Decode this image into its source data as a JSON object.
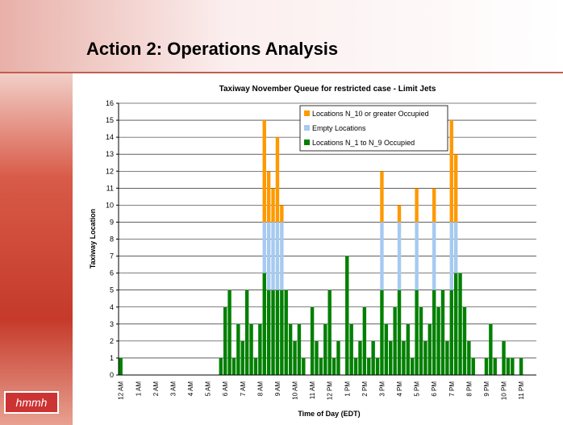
{
  "slide_title": "Action 2: Operations Analysis",
  "logo": "hmmh",
  "chart_data": {
    "type": "bar",
    "stacked": true,
    "title": "Taxiway November Queue for restricted case - Limit Jets",
    "x_label": "Time of Day (EDT)",
    "y_label": "Taxiway Location",
    "ylim": [
      0,
      16
    ],
    "yticks": [
      0,
      1,
      2,
      3,
      4,
      5,
      6,
      7,
      8,
      9,
      10,
      11,
      12,
      13,
      14,
      15,
      16
    ],
    "grid": true,
    "legend": "top",
    "categories": [
      "12 AM",
      null,
      null,
      null,
      "1 AM",
      null,
      null,
      null,
      "2 AM",
      null,
      null,
      null,
      "3 AM",
      null,
      null,
      null,
      "4 AM",
      null,
      null,
      null,
      "5 AM",
      null,
      null,
      null,
      "6 AM",
      null,
      null,
      null,
      "7 AM",
      null,
      null,
      null,
      "8 AM",
      null,
      null,
      null,
      "9 AM",
      null,
      null,
      null,
      "10 AM",
      null,
      null,
      null,
      "11 AM",
      null,
      null,
      null,
      "12 PM",
      null,
      null,
      null,
      "1 PM",
      null,
      null,
      null,
      "2 PM",
      null,
      null,
      null,
      "3 PM",
      null,
      null,
      null,
      "4 PM",
      null,
      null,
      null,
      "5 PM",
      null,
      null,
      null,
      "6 PM",
      null,
      null,
      null,
      "7 PM",
      null,
      null,
      null,
      "8 PM",
      null,
      null,
      null,
      "9 PM",
      null,
      null,
      null,
      "10 PM",
      null,
      null,
      null,
      "11 PM",
      null,
      null,
      null
    ],
    "series": [
      {
        "name": "Locations N_1 to N_9 Occupied",
        "color": "#008000",
        "values": [
          1,
          0,
          0,
          0,
          0,
          0,
          0,
          0,
          0,
          0,
          0,
          0,
          0,
          0,
          0,
          0,
          0,
          0,
          0,
          0,
          0,
          0,
          0,
          1,
          4,
          5,
          1,
          3,
          2,
          5,
          3,
          1,
          3,
          6,
          5,
          5,
          5,
          5,
          5,
          3,
          2,
          3,
          1,
          0,
          4,
          2,
          1,
          3,
          5,
          1,
          2,
          0,
          7,
          3,
          1,
          2,
          4,
          1,
          2,
          1,
          5,
          3,
          2,
          4,
          5,
          2,
          3,
          1,
          5,
          4,
          2,
          3,
          5,
          4,
          5,
          2,
          5,
          6,
          6,
          4,
          2,
          1,
          0,
          0,
          1,
          3,
          1,
          0,
          2,
          1,
          1,
          0,
          1,
          0,
          0,
          0
        ]
      },
      {
        "name": "Empty Locations",
        "color": "#a6caf0",
        "values": [
          0,
          0,
          0,
          0,
          0,
          0,
          0,
          0,
          0,
          0,
          0,
          0,
          0,
          0,
          0,
          0,
          0,
          0,
          0,
          0,
          0,
          0,
          0,
          0,
          0,
          0,
          0,
          0,
          0,
          0,
          0,
          0,
          0,
          3,
          4,
          4,
          4,
          4,
          0,
          0,
          0,
          0,
          0,
          0,
          0,
          0,
          0,
          0,
          0,
          0,
          0,
          0,
          0,
          0,
          0,
          0,
          0,
          0,
          0,
          0,
          4,
          0,
          0,
          0,
          4,
          0,
          0,
          0,
          4,
          0,
          0,
          0,
          4,
          0,
          0,
          0,
          4,
          3,
          0,
          0,
          0,
          0,
          0,
          0,
          0,
          0,
          0,
          0,
          0,
          0,
          0,
          0,
          0,
          0,
          0,
          0
        ]
      },
      {
        "name": "Locations N_10 or greater Occupied",
        "color": "#ff9900",
        "values": [
          0,
          0,
          0,
          0,
          0,
          0,
          0,
          0,
          0,
          0,
          0,
          0,
          0,
          0,
          0,
          0,
          0,
          0,
          0,
          0,
          0,
          0,
          0,
          0,
          0,
          0,
          0,
          0,
          0,
          0,
          0,
          0,
          0,
          6,
          3,
          2,
          5,
          1,
          0,
          0,
          0,
          0,
          0,
          0,
          0,
          0,
          0,
          0,
          0,
          0,
          0,
          0,
          0,
          0,
          0,
          0,
          0,
          0,
          0,
          0,
          3,
          0,
          0,
          0,
          1,
          0,
          0,
          0,
          2,
          0,
          0,
          0,
          2,
          0,
          0,
          0,
          6,
          4,
          0,
          0,
          0,
          0,
          0,
          0,
          0,
          0,
          0,
          0,
          0,
          0,
          0,
          0,
          0,
          0,
          0,
          0
        ]
      }
    ]
  }
}
